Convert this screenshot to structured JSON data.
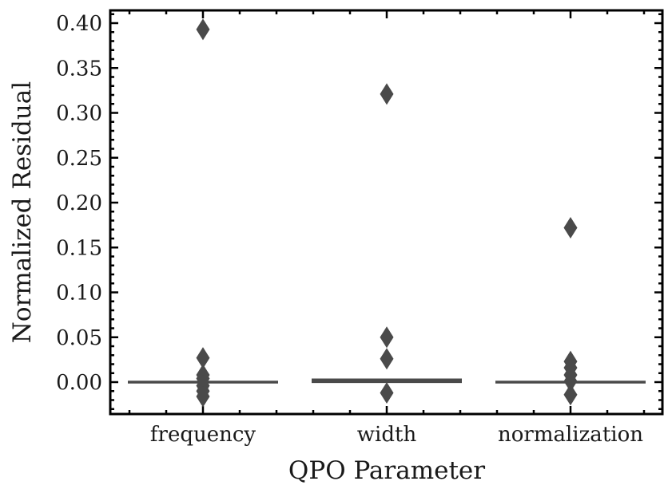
{
  "chart_data": {
    "type": "box",
    "xlabel": "QPO Parameter",
    "ylabel": "Normalized Residual",
    "ylim": [
      -0.035,
      0.415
    ],
    "yticks": [
      0.0,
      0.05,
      0.1,
      0.15,
      0.2,
      0.25,
      0.3,
      0.35,
      0.4
    ],
    "ytick_labels": [
      "0.00",
      "0.05",
      "0.10",
      "0.15",
      "0.20",
      "0.25",
      "0.30",
      "0.35",
      "0.40"
    ],
    "categories": [
      "frequency",
      "width",
      "normalization"
    ],
    "boxes": [
      {
        "category": "frequency",
        "q1": -0.0005,
        "median": 0.0,
        "q3": 0.0005,
        "outliers": [
          0.393,
          0.027,
          0.008,
          0.004,
          -0.004,
          -0.01,
          -0.016
        ]
      },
      {
        "category": "width",
        "q1": -0.001,
        "median": 0.002,
        "q3": 0.004,
        "outliers": [
          0.321,
          0.05,
          0.026,
          -0.012
        ]
      },
      {
        "category": "normalization",
        "q1": -0.0005,
        "median": 0.0,
        "q3": 0.0005,
        "outliers": [
          0.172,
          0.023,
          0.016,
          0.008,
          0.001,
          -0.014
        ]
      }
    ],
    "colors": {
      "box": "#4a4a4a",
      "axis": "#000000"
    },
    "grid": false
  }
}
